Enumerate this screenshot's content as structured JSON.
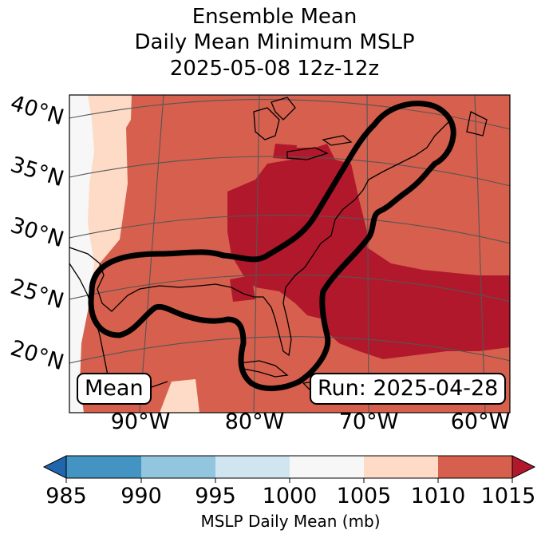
{
  "title": {
    "line1": "Ensemble Mean",
    "line2": "Daily Mean Minimum MSLP",
    "line3": "2025-05-08 12z-12z"
  },
  "map": {
    "latitude_labels": [
      "40°N",
      "35°N",
      "30°N",
      "25°N",
      "20°N"
    ],
    "longitude_labels": [
      "90°W",
      "80°W",
      "70°W",
      "60°W"
    ],
    "mean_label": "Mean",
    "run_label": "Run: 2025-04-28",
    "contour_color": "#000000",
    "fill_colors": {
      "1000_1005": "#f7f7f7",
      "1005_1010": "#fddbc7",
      "1010_1015": "#d6604d",
      "above_1015": "#b2182b"
    }
  },
  "colorbar": {
    "label": "MSLP Daily Mean (mb)",
    "ticks": [
      "985",
      "990",
      "995",
      "1000",
      "1005",
      "1010",
      "1015"
    ],
    "under_color": "#2166ac",
    "over_color": "#b2182b",
    "bins": [
      {
        "range": "985-990",
        "color": "#4393c3"
      },
      {
        "range": "990-995",
        "color": "#92c5de"
      },
      {
        "range": "995-1000",
        "color": "#d1e5f0"
      },
      {
        "range": "1000-1005",
        "color": "#f7f7f7"
      },
      {
        "range": "1005-1010",
        "color": "#fddbc7"
      },
      {
        "range": "1010-1015",
        "color": "#d6604d"
      }
    ]
  }
}
